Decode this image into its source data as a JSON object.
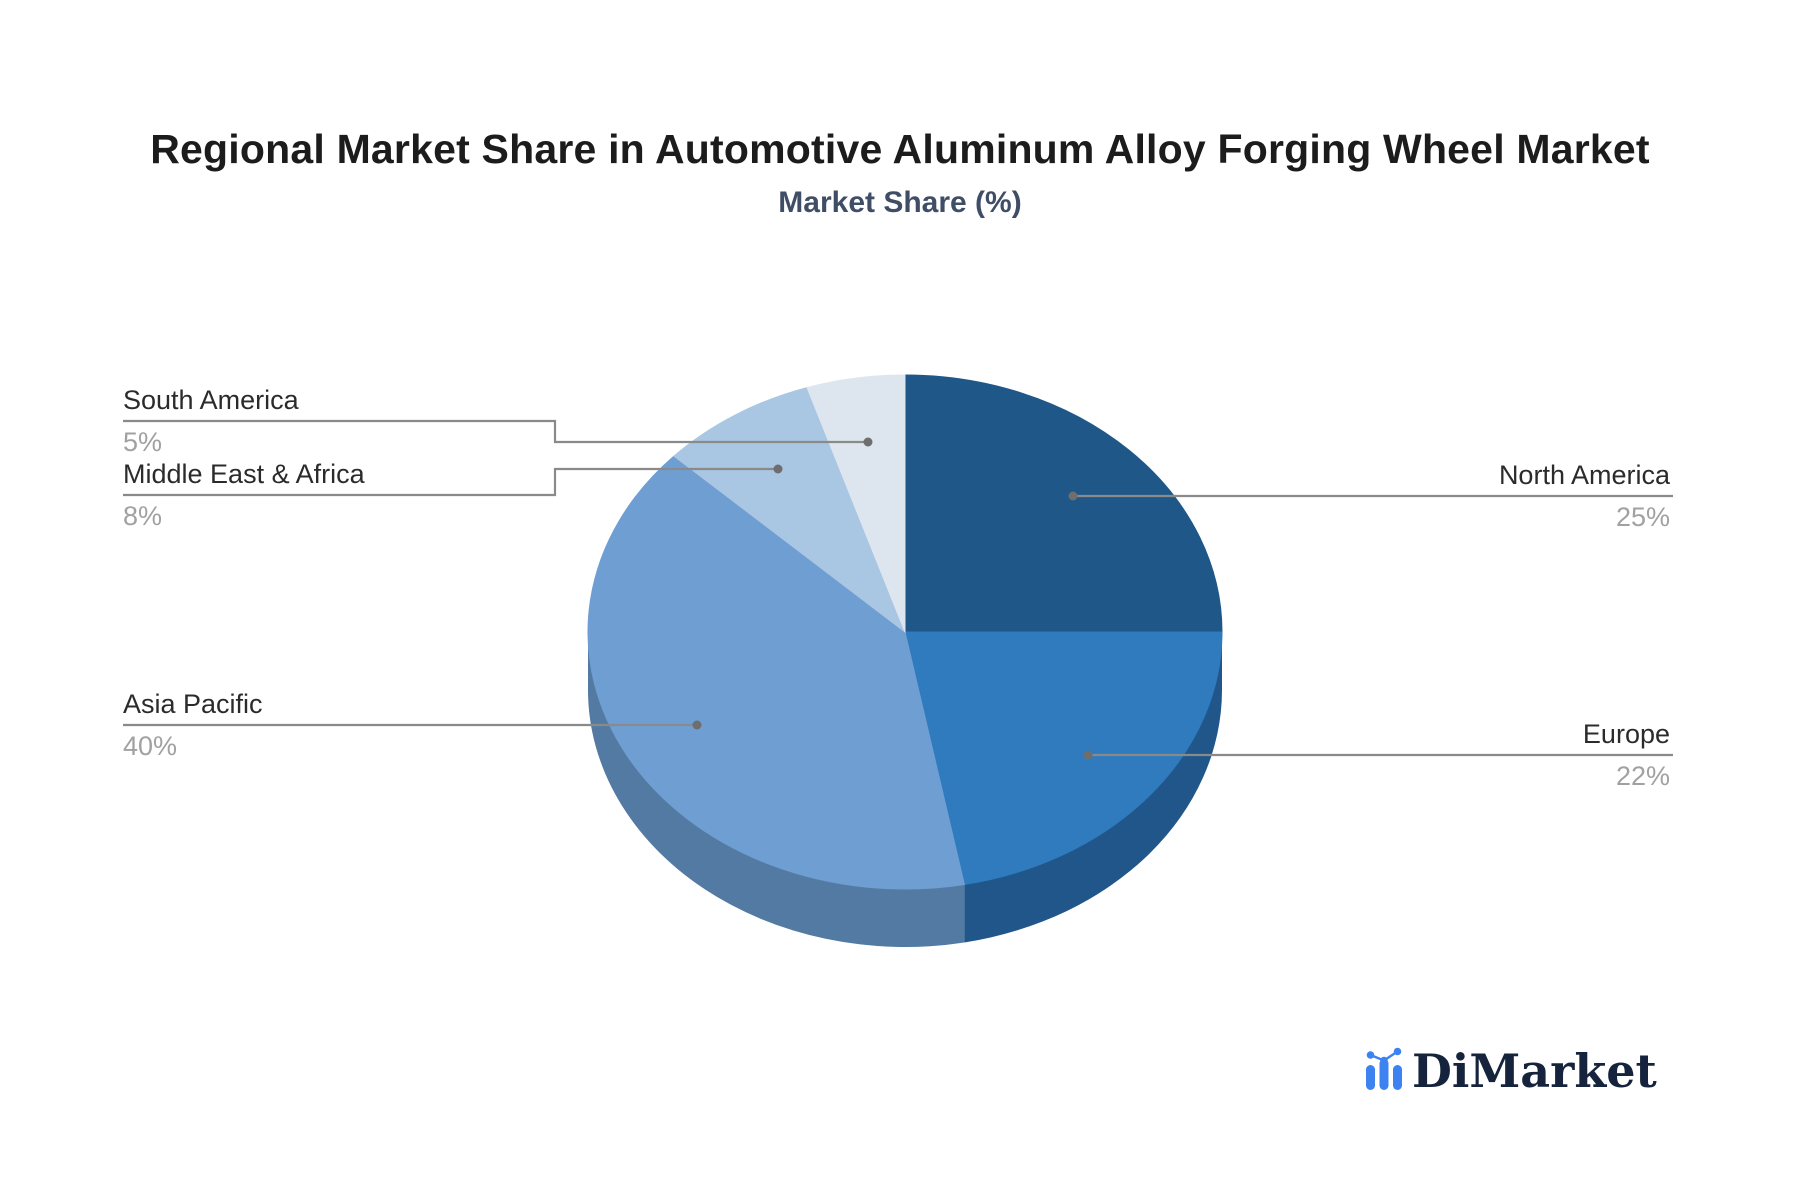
{
  "title": "Regional Market Share in Automotive Aluminum Alloy Forging Wheel Market",
  "subtitle": "Market Share (%)",
  "logo": {
    "text": "DiMarket",
    "icon": "bar-chart-trend-icon",
    "icon_color": "#3c83f1",
    "text_color": "#15233c"
  },
  "style": {
    "background": "#ffffff",
    "title_color": "#1c1c1c",
    "subtitle_color": "#3f4e66",
    "label_color": "#2b2b2b",
    "percent_color": "#a1a1a1",
    "callout_line_color": "#8a8a8a",
    "callout_dot_color": "#6e6e6e"
  },
  "chart_data": {
    "type": "pie",
    "style_3d": true,
    "title": "Regional Market Share in Automotive Aluminum Alloy Forging Wheel Market",
    "series_name": "Market Share (%)",
    "start_angle": "12-o-clock",
    "direction": "clockwise",
    "legend_position": "callout-labels",
    "slices": [
      {
        "label": "North America",
        "value": 25,
        "display": "25%",
        "color": "#1e5788",
        "depth_color": "#1a4a74",
        "label_side": "right"
      },
      {
        "label": "Europe",
        "value": 22,
        "display": "22%",
        "color": "#2f7bbd",
        "depth_color": "#20568a",
        "label_side": "right"
      },
      {
        "label": "Asia Pacific",
        "value": 40,
        "display": "40%",
        "color": "#6f9ed3",
        "depth_color": "#537aa2",
        "label_side": "left"
      },
      {
        "label": "Middle East & Africa",
        "value": 8,
        "display": "8%",
        "color": "#a9c6e3",
        "depth_color": "#87a0b8",
        "label_side": "left"
      },
      {
        "label": "South America",
        "value": 5,
        "display": "5%",
        "color": "#dde5ef",
        "depth_color": "#b3bcc9",
        "label_side": "left"
      }
    ]
  }
}
